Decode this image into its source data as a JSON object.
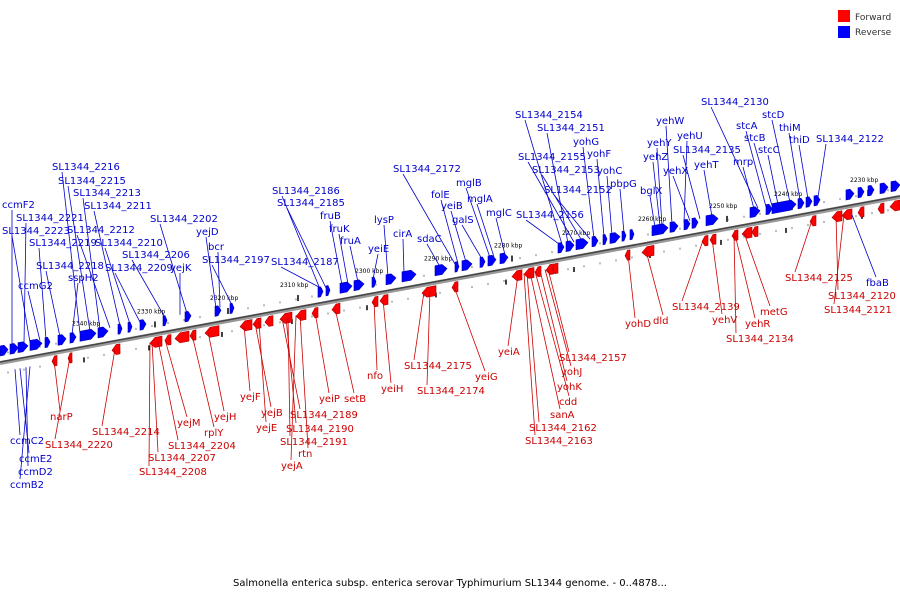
{
  "legend": [
    {
      "label": "Forward",
      "color": "#ff0000"
    },
    {
      "label": "Reverse",
      "color": "#0000ff"
    }
  ],
  "caption": "Salmonella enterica subsp. enterica serovar Typhimurium SL1344 genome. - 0..4878...",
  "ticks": [
    "2340 kbp",
    "2330 kbp",
    "2320 kbp",
    "2310 kbp",
    "2300 kbp",
    "2290 kbp",
    "2280 kbp",
    "2270 kbp",
    "2260 kbp",
    "2250 kbp",
    "2240 kbp",
    "2230 kbp"
  ],
  "forward_labels": [
    "narP",
    "SL1344_2220",
    "SL1344_2214",
    "yejM",
    "SL1344_2204",
    "SL1344_2207",
    "SL1344_2208",
    "rplY",
    "yejH",
    "yejF",
    "yejB",
    "yejE",
    "SL1344_2189",
    "SL1344_2190",
    "SL1344_2191",
    "rtn",
    "yejA",
    "yeiP",
    "setB",
    "nfo",
    "yeiH",
    "SL1344_2175",
    "SL1344_2174",
    "yeiG",
    "yeiA",
    "SL1344_2157",
    "yohJ",
    "yohK",
    "cdd",
    "sanA",
    "SL1344_2162",
    "SL1344_2163",
    "yohD",
    "dld",
    "SL1344_2139",
    "yehV",
    "metG",
    "yehR",
    "SL1344_2134",
    "SL1344_2125",
    "SL1344_2120",
    "SL1344_2121"
  ],
  "reverse_labels": [
    "ccmF2",
    "SL1344_2221",
    "SL1344_2223",
    "SL1344_2219",
    "ccmG2",
    "SL1344_2218",
    "sspH2",
    "SL1344_2216",
    "SL1344_2215",
    "SL1344_2213",
    "SL1344_2211",
    "SL1344_2212",
    "SL1344_2210",
    "SL1344_2209",
    "SL1344_2206",
    "SL1344_2202",
    "yejK",
    "yejD",
    "bcr",
    "SL1344_2197",
    "SL1344_2186",
    "SL1344_2185",
    "SL1344_2187",
    "fruB",
    "fruK",
    "fruA",
    "yeiE",
    "lysP",
    "cirA",
    "sdaC",
    "SL1344_2172",
    "folE",
    "yeiB",
    "galS",
    "mglB",
    "mglA",
    "mglC",
    "SL1344_2154",
    "SL1344_2151",
    "SL1344_2155",
    "SL1344_2153",
    "SL1344_2152",
    "SL1344_2156",
    "yohG",
    "yohF",
    "yohC",
    "pbpG",
    "bglX",
    "yehY",
    "yehZ",
    "yehW",
    "yehU",
    "yehX",
    "SL1344_2135",
    "yehT",
    "SL1344_2130",
    "stcA",
    "stcB",
    "mrp",
    "stcC",
    "stcD",
    "thiM",
    "thiD",
    "SL1344_2122",
    "fbaB",
    "ccmC2",
    "ccmE2",
    "ccmD2",
    "ccmB2"
  ]
}
